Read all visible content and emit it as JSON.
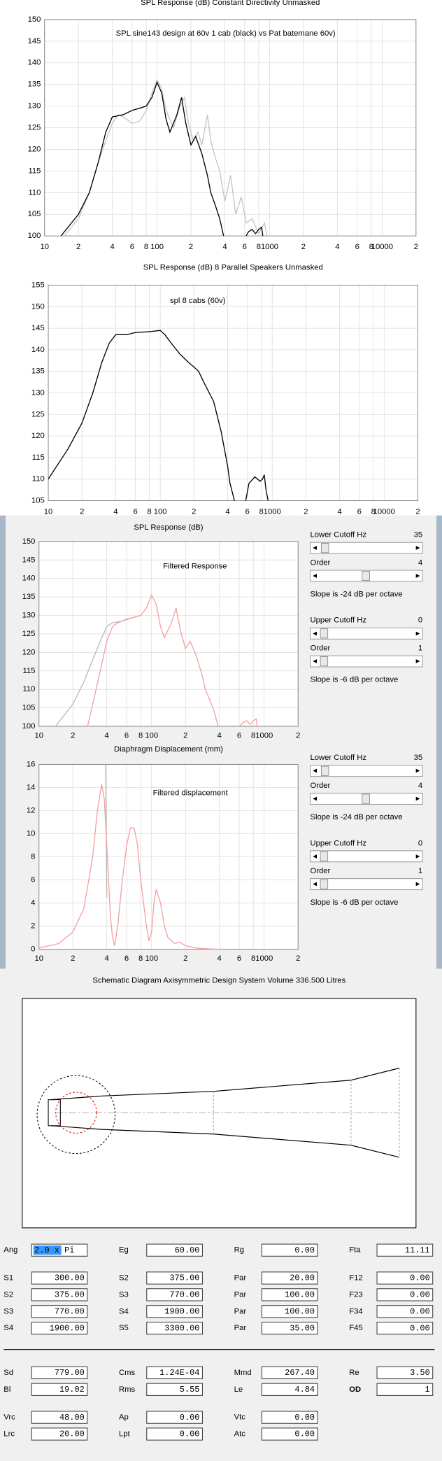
{
  "chart_data": [
    {
      "type": "line",
      "title": "SPL Response (dB)   Constant Directivity   Unmasked",
      "annotation": "SPL sine143 design at 60v 1 cab (black) vs Pat batemane 60v)",
      "log_x": true,
      "grid": true,
      "xlim": [
        10,
        20000
      ],
      "xticks": [
        10,
        {
          "value": 20,
          "label": "2"
        },
        {
          "value": 40,
          "label": "4"
        },
        {
          "value": 60,
          "label": "6"
        },
        {
          "value": 80,
          "label": "8"
        },
        100,
        {
          "value": 200,
          "label": "2"
        },
        {
          "value": 400,
          "label": "4"
        },
        {
          "value": 600,
          "label": "6"
        },
        {
          "value": 800,
          "label": "8"
        },
        1000,
        {
          "value": 2000,
          "label": "2"
        },
        {
          "value": 4000,
          "label": "4"
        },
        {
          "value": 6000,
          "label": "6"
        },
        {
          "value": 8000,
          "label": "8"
        },
        10000,
        {
          "value": 20000,
          "label": "2"
        }
      ],
      "ylim": [
        100,
        150
      ],
      "yticks": [
        100,
        105,
        110,
        115,
        120,
        125,
        130,
        135,
        140,
        145,
        150
      ],
      "series": [
        {
          "color": "#c4c4c4",
          "x": [
            15,
            20,
            25,
            30,
            35,
            40,
            45,
            50,
            60,
            70,
            80,
            90,
            100,
            110,
            120,
            140,
            160,
            175,
            190,
            210,
            230,
            250,
            280,
            300,
            330,
            360,
            400,
            450,
            500,
            560,
            620,
            700,
            800,
            900,
            950
          ],
          "values": [
            100,
            104,
            110,
            117,
            122,
            126,
            128,
            127.5,
            126,
            126.5,
            129,
            133,
            136,
            134,
            129,
            125,
            130,
            132,
            126,
            122,
            124,
            121,
            128,
            122,
            118,
            115,
            108,
            114,
            105,
            109,
            103,
            104,
            100.5,
            103,
            100
          ]
        },
        {
          "color": "#000000",
          "x": [
            14,
            20,
            25,
            30,
            35,
            40,
            50,
            60,
            70,
            80,
            90,
            100,
            110,
            120,
            130,
            150,
            165,
            180,
            200,
            220,
            250,
            280,
            300,
            330,
            360,
            390,
            null,
            620,
            650,
            700,
            750,
            800,
            850,
            870
          ],
          "values": [
            100,
            105,
            110,
            117,
            124,
            127.5,
            128,
            129,
            129.5,
            130,
            132,
            135.5,
            133,
            127,
            124,
            128,
            132,
            126,
            121,
            123,
            119,
            114,
            110,
            107,
            104,
            100,
            null,
            100,
            101,
            101.5,
            100.5,
            101.5,
            102,
            100
          ]
        }
      ]
    },
    {
      "type": "line",
      "title": "SPL Response (dB)   8 Parallel Speakers   Unmasked",
      "annotation": "spl 8 cabs (60v)",
      "log_x": true,
      "grid": true,
      "xlim": [
        10,
        20000
      ],
      "xticks": [
        10,
        {
          "value": 20,
          "label": "2"
        },
        {
          "value": 40,
          "label": "4"
        },
        {
          "value": 60,
          "label": "6"
        },
        {
          "value": 80,
          "label": "8"
        },
        100,
        {
          "value": 200,
          "label": "2"
        },
        {
          "value": 400,
          "label": "4"
        },
        {
          "value": 600,
          "label": "6"
        },
        {
          "value": 800,
          "label": "8"
        },
        1000,
        {
          "value": 2000,
          "label": "2"
        },
        {
          "value": 4000,
          "label": "4"
        },
        {
          "value": 6000,
          "label": "6"
        },
        {
          "value": 8000,
          "label": "8"
        },
        10000,
        {
          "value": 20000,
          "label": "2"
        }
      ],
      "ylim": [
        105,
        155
      ],
      "yticks": [
        105,
        110,
        115,
        120,
        125,
        130,
        135,
        140,
        145,
        150,
        155
      ],
      "series": [
        {
          "color": "#000000",
          "x": [
            10,
            15,
            20,
            25,
            30,
            35,
            40,
            50,
            60,
            80,
            100,
            110,
            130,
            150,
            180,
            200,
            220,
            250,
            300,
            350,
            400,
            420,
            460,
            null,
            580,
            620,
            700,
            780,
            820,
            850,
            880,
            920
          ],
          "values": [
            110,
            117,
            123,
            130,
            137,
            141.5,
            143.5,
            143.5,
            144,
            144.2,
            144.5,
            143.5,
            141,
            139,
            137,
            136,
            135,
            132,
            128,
            121,
            113,
            109,
            105,
            null,
            105,
            109,
            110.5,
            109.5,
            110,
            111,
            107.5,
            105
          ]
        }
      ]
    },
    {
      "type": "line",
      "title": "SPL Response (dB)",
      "annotation": "Filtered Response",
      "log_x": true,
      "grid": true,
      "xlim": [
        10,
        2000
      ],
      "xticks": [
        10,
        {
          "value": 20,
          "label": "2"
        },
        {
          "value": 40,
          "label": "4"
        },
        {
          "value": 60,
          "label": "6"
        },
        {
          "value": 80,
          "label": "8"
        },
        100,
        {
          "value": 200,
          "label": "2"
        },
        {
          "value": 400,
          "label": "4"
        },
        {
          "value": 600,
          "label": "6"
        },
        {
          "value": 800,
          "label": "8"
        },
        1000,
        {
          "value": 2000,
          "label": "2"
        }
      ],
      "ylim": [
        100,
        150
      ],
      "yticks": [
        100,
        105,
        110,
        115,
        120,
        125,
        130,
        135,
        140,
        145,
        150
      ],
      "series": [
        {
          "color": "#b8b8b8",
          "x": [
            14,
            20,
            25,
            30,
            35,
            40,
            45,
            55,
            70,
            80
          ],
          "values": [
            100,
            106,
            112,
            118,
            123,
            127,
            128,
            128.5,
            129.5,
            130
          ]
        },
        {
          "color": "#f4a0a0",
          "x": [
            27,
            30,
            35,
            40,
            45,
            50,
            60,
            70,
            80,
            90,
            100,
            110,
            120,
            130,
            150,
            165,
            180,
            200,
            220,
            250,
            280,
            300,
            330,
            360,
            390,
            null,
            600,
            650,
            700,
            750,
            800,
            850,
            870
          ],
          "values": [
            100,
            106,
            115,
            123,
            127,
            128,
            129,
            129.5,
            130,
            132,
            135.5,
            133,
            127,
            124,
            128,
            132,
            126,
            121,
            123,
            119,
            114,
            110,
            107,
            104,
            100,
            null,
            100,
            101,
            101.5,
            100.5,
            101.5,
            102,
            100
          ]
        }
      ]
    },
    {
      "type": "line",
      "title": "Diaphragm Displacement (mm)",
      "annotation": "Filtered displacement",
      "log_x": true,
      "grid": true,
      "xlim": [
        10,
        2000
      ],
      "xticks": [
        10,
        {
          "value": 20,
          "label": "2"
        },
        {
          "value": 40,
          "label": "4"
        },
        {
          "value": 60,
          "label": "6"
        },
        {
          "value": 80,
          "label": "8"
        },
        100,
        {
          "value": 200,
          "label": "2"
        },
        {
          "value": 400,
          "label": "4"
        },
        {
          "value": 600,
          "label": "6"
        },
        {
          "value": 800,
          "label": "8"
        },
        1000,
        {
          "value": 2000,
          "label": "2"
        }
      ],
      "ylim": [
        0,
        16
      ],
      "yticks": [
        0,
        2,
        4,
        6,
        8,
        10,
        12,
        14,
        16
      ],
      "series": [
        {
          "color": "#b8b8b8",
          "x": [
            39,
            40
          ],
          "values": [
            16,
            4.5
          ]
        },
        {
          "color": "#f4a0a0",
          "x": [
            10,
            15,
            20,
            25,
            30,
            33,
            36,
            38,
            40,
            43,
            45,
            47,
            50,
            55,
            60,
            65,
            70,
            75,
            80,
            90,
            95,
            100,
            105,
            110,
            120,
            130,
            140,
            160,
            180,
            200,
            250,
            300,
            400
          ],
          "values": [
            0.1,
            0.5,
            1.5,
            3.5,
            8,
            12,
            14.3,
            13,
            9,
            3,
            1,
            0.3,
            2,
            6,
            9,
            10.5,
            10.5,
            9,
            6,
            2,
            0.7,
            1.5,
            4,
            5.2,
            4,
            2,
            1,
            0.5,
            0.6,
            0.3,
            0.1,
            0.05,
            0
          ]
        }
      ]
    }
  ],
  "filter_panels": [
    {
      "groups": [
        {
          "cutoff_label": "Lower Cutoff  Hz",
          "cutoff": 35,
          "order_label": "Order",
          "order": 4,
          "slope": "Slope is -24 dB per octave"
        },
        {
          "cutoff_label": "Upper Cutoff  Hz",
          "cutoff": 0,
          "order_label": "Order",
          "order": 1,
          "slope": "Slope is -6 dB per octave"
        }
      ]
    },
    {
      "groups": [
        {
          "cutoff_label": "Lower Cutoff  Hz",
          "cutoff": 35,
          "order_label": "Order",
          "order": 4,
          "slope": "Slope is -24 dB per octave"
        },
        {
          "cutoff_label": "Upper Cutoff  Hz",
          "cutoff": 0,
          "order_label": "Order",
          "order": 1,
          "slope": "Slope is -6 dB per octave"
        }
      ]
    }
  ],
  "schematic": {
    "title": "Schematic Diagram   Axisymmetric Design   System Volume 336.500 Litres"
  },
  "form": {
    "rows": [
      [
        {
          "label": "Ang",
          "value": "2.0 x Pi",
          "selected": true
        },
        {
          "label": "Eg",
          "value": "60.00"
        },
        {
          "label": "Rg",
          "value": "0.00"
        },
        {
          "label": "Fta",
          "value": "11.11",
          "disabled": true
        }
      ],
      [
        {
          "label": "S1",
          "value": "300.00"
        },
        {
          "label": "S2",
          "value": "375.00"
        },
        {
          "label": "Par",
          "value": "20.00"
        },
        {
          "label": "F12",
          "value": "0.00",
          "disabled": true
        }
      ],
      [
        {
          "label": "S2",
          "value": "375.00"
        },
        {
          "label": "S3",
          "value": "770.00"
        },
        {
          "label": "Par",
          "value": "100.00"
        },
        {
          "label": "F23",
          "value": "0.00",
          "disabled": true
        }
      ],
      [
        {
          "label": "S3",
          "value": "770.00"
        },
        {
          "label": "S4",
          "value": "1900.00"
        },
        {
          "label": "Par",
          "value": "100.00"
        },
        {
          "label": "F34",
          "value": "0.00",
          "disabled": true
        }
      ],
      [
        {
          "label": "S4",
          "value": "1900.00"
        },
        {
          "label": "S5",
          "value": "3300.00"
        },
        {
          "label": "Par",
          "value": "35.00"
        },
        {
          "label": "F45",
          "value": "0.00",
          "disabled": true
        }
      ],
      [
        {
          "label": "Sd",
          "value": "779.00"
        },
        {
          "label": "Cms",
          "value": "1.24E-04"
        },
        {
          "label": "Mmd",
          "value": "267.40"
        },
        {
          "label": "Re",
          "value": "3.50"
        }
      ],
      [
        {
          "label": "Bl",
          "value": "19.02"
        },
        {
          "label": "Rms",
          "value": "5.55"
        },
        {
          "label": "Le",
          "value": "4.84"
        },
        {
          "label": "OD",
          "value": "1",
          "label_color": "#e00000"
        }
      ],
      [
        {
          "label": "Vrc",
          "value": "48.00"
        },
        {
          "label": "Ap",
          "value": "0.00"
        },
        {
          "label": "Vtc",
          "value": "0.00"
        }
      ],
      [
        {
          "label": "Lrc",
          "value": "20.00"
        },
        {
          "label": "Lpt",
          "value": "0.00"
        },
        {
          "label": "Atc",
          "value": "0.00"
        }
      ]
    ]
  }
}
